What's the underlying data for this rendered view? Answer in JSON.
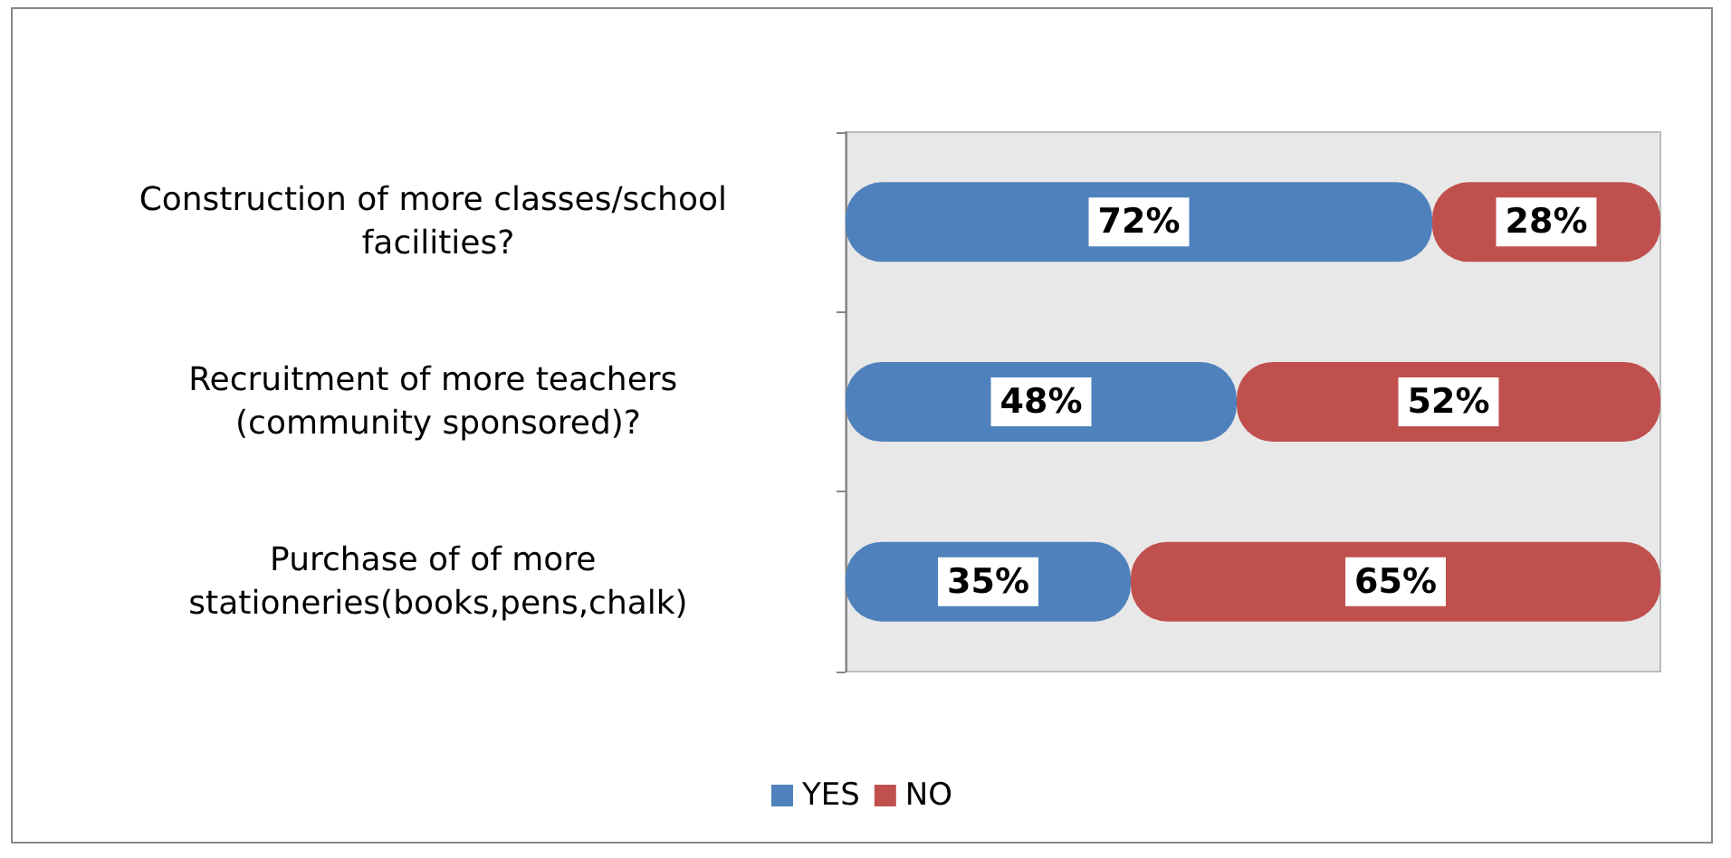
{
  "chart_data": {
    "type": "bar",
    "orientation": "horizontal",
    "stacked": true,
    "categories": [
      "Construction of more classes/school facilities?",
      "Recruitment of more teachers (community sponsored)?",
      "Purchase of of more stationeries(books,pens,chalk)"
    ],
    "series": [
      {
        "name": "YES",
        "color": "#4f81bd",
        "values": [
          72,
          48,
          35
        ],
        "value_labels": [
          "72%",
          "48%",
          "35%"
        ]
      },
      {
        "name": "NO",
        "color": "#c0504d",
        "values": [
          28,
          52,
          65
        ],
        "value_labels": [
          "28%",
          "52%",
          "65%"
        ]
      }
    ],
    "legend": "bottom"
  }
}
